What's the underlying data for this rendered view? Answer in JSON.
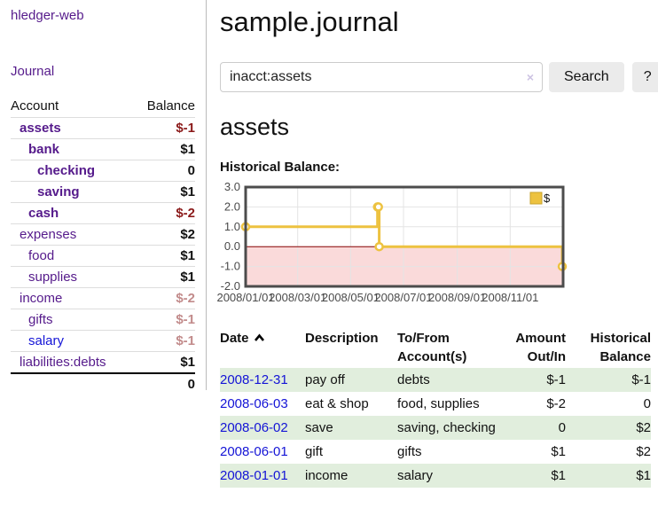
{
  "sidebar": {
    "brand": "hledger-web",
    "nav": {
      "journal": "Journal"
    },
    "accounts_table": {
      "headers": {
        "account": "Account",
        "balance": "Balance"
      },
      "rows": [
        {
          "name": "assets",
          "balance": "$-1",
          "level": 1,
          "bold": true,
          "negative": "strong"
        },
        {
          "name": "bank",
          "balance": "$1",
          "level": 2,
          "bold": true
        },
        {
          "name": "checking",
          "balance": "0",
          "level": 3,
          "bold": true
        },
        {
          "name": "saving",
          "balance": "$1",
          "level": 3,
          "bold": true
        },
        {
          "name": "cash",
          "balance": "$-2",
          "level": 2,
          "bold": true,
          "negative": "strong"
        },
        {
          "name": "expenses",
          "balance": "$2",
          "level": 1
        },
        {
          "name": "food",
          "balance": "$1",
          "level": 2
        },
        {
          "name": "supplies",
          "balance": "$1",
          "level": 2
        },
        {
          "name": "income",
          "balance": "$-2",
          "level": 1,
          "negative": "muted"
        },
        {
          "name": "gifts",
          "balance": "$-1",
          "level": 2,
          "negative": "muted"
        },
        {
          "name": "salary",
          "balance": "$-1",
          "level": 2,
          "negative": "muted",
          "link_color": "blue"
        },
        {
          "name": "liabilities:debts",
          "balance": "$1",
          "level": 1
        }
      ],
      "total": "0"
    }
  },
  "header": {
    "title": "sample.journal"
  },
  "search": {
    "value": "inacct:assets",
    "clear_icon": "×",
    "button": "Search",
    "help_button": "?"
  },
  "account_page": {
    "heading": "assets",
    "chart_label": "Historical Balance:"
  },
  "chart_data": {
    "type": "line",
    "title": "Historical Balance:",
    "steps": true,
    "series": [
      {
        "name": "$",
        "color": "#edc240",
        "points": [
          [
            "2008-01-01",
            1
          ],
          [
            "2008-06-01",
            2
          ],
          [
            "2008-06-02",
            2
          ],
          [
            "2008-06-03",
            0
          ],
          [
            "2008-12-31",
            -1
          ]
        ]
      }
    ],
    "x_range": [
      "2008-01-01",
      "2009-01-01"
    ],
    "x_ticks": [
      "2008/01/01",
      "2008/03/01",
      "2008/05/01",
      "2008/07/01",
      "2008/09/01",
      "2008/11/01"
    ],
    "y_ticks": [
      3.0,
      2.0,
      1.0,
      0.0,
      -1.0,
      -2.0
    ],
    "ylim": [
      -2,
      3
    ],
    "grid": true,
    "negative_region_color": "#fadada",
    "zero_line_color": "#8b0000",
    "legend": {
      "label": "$",
      "position": "top-right"
    }
  },
  "register_table": {
    "headers": {
      "date": "Date",
      "description": "Description",
      "account_line1": "To/From",
      "account_line2": "Account(s)",
      "amount_line1": "Amount",
      "amount_line2": "Out/In",
      "balance_line1": "Historical",
      "balance_line2": "Balance"
    },
    "sort": "ascending",
    "rows": [
      {
        "date": "2008-12-31",
        "description": "pay off",
        "accounts": "debts",
        "amount": "$-1",
        "amount_negative": true,
        "balance": "$-1",
        "balance_negative": true
      },
      {
        "date": "2008-06-03",
        "description": "eat & shop",
        "accounts": "food, supplies",
        "amount": "$-2",
        "amount_negative": true,
        "balance": "0",
        "balance_negative": false
      },
      {
        "date": "2008-06-02",
        "description": "save",
        "accounts": "saving, checking",
        "amount": "0",
        "amount_negative": false,
        "balance": "$2",
        "balance_negative": false
      },
      {
        "date": "2008-06-01",
        "description": "gift",
        "accounts": "gifts",
        "amount": "$1",
        "amount_negative": false,
        "balance": "$2",
        "balance_negative": false
      },
      {
        "date": "2008-01-01",
        "description": "income",
        "accounts": "salary",
        "amount": "$1",
        "amount_negative": false,
        "balance": "$1",
        "balance_negative": false
      }
    ]
  }
}
